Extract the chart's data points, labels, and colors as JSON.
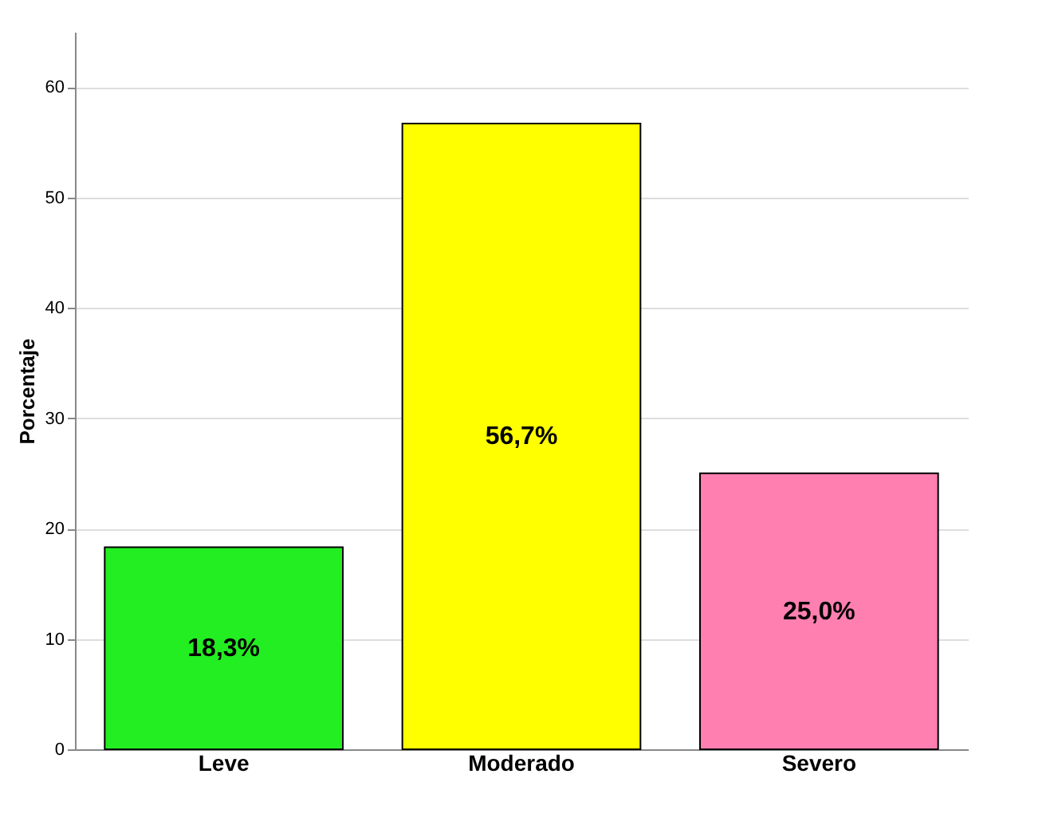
{
  "chart_data": {
    "type": "bar",
    "ylabel": "Porcentaje",
    "categories": [
      "Leve",
      "Moderado",
      "Severo"
    ],
    "values": [
      18.3,
      56.7,
      25.0
    ],
    "colors": [
      "#22ee22",
      "#ffff00",
      "#ff80b0"
    ],
    "value_labels": [
      "18,3%",
      "56,7%",
      "25,0%"
    ],
    "ylim": [
      0,
      65
    ],
    "yticks": [
      0,
      10,
      20,
      30,
      40,
      50,
      60
    ],
    "grid": "y"
  }
}
